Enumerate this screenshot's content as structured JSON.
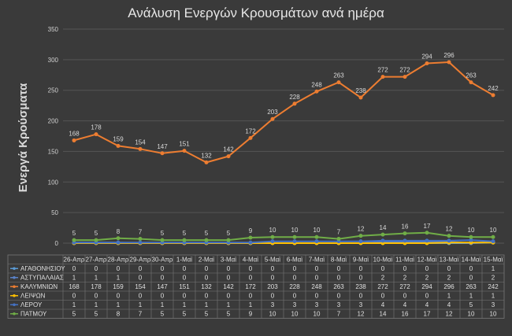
{
  "chart_data": {
    "type": "line",
    "title": "Ανάλυση Ενεργών Κρουσμάτων ανά ημέρα",
    "ylabel": "Ενεργά Κρούσματα",
    "xlabel": "",
    "ylim": [
      0,
      350
    ],
    "yticks": [
      0,
      50,
      100,
      150,
      200,
      250,
      300,
      350
    ],
    "grid": true,
    "legend": "data table",
    "categories": [
      "26-Απρ",
      "27-Απρ",
      "28-Απρ",
      "29-Απρ",
      "30-Απρ",
      "1-Μαϊ",
      "2-Μαϊ",
      "3-Μαϊ",
      "4-Μαϊ",
      "5-Μαϊ",
      "6-Μαϊ",
      "7-Μαϊ",
      "8-Μαϊ",
      "9-Μαϊ",
      "10-Μαϊ",
      "11-Μαϊ",
      "12-Μαϊ",
      "13-Μαϊ",
      "14-Μαϊ",
      "15-Μαϊ"
    ],
    "series": [
      {
        "name": "ΑΓΑΘΟΝΗΣΙΟΥ",
        "color": "#5b9bd5",
        "labeled": false,
        "values": [
          0,
          0,
          0,
          0,
          0,
          0,
          0,
          0,
          0,
          0,
          0,
          0,
          0,
          0,
          0,
          0,
          0,
          0,
          0,
          1
        ]
      },
      {
        "name": "ΑΣΤΥΠΑΛΑΙΑΣ",
        "color": "#5a82c8",
        "labeled": false,
        "values": [
          1,
          1,
          1,
          0,
          0,
          0,
          0,
          0,
          0,
          0,
          0,
          0,
          0,
          0,
          2,
          2,
          2,
          2,
          0,
          2
        ]
      },
      {
        "name": "ΚΑΛΥΜΝΙΩΝ",
        "color": "#ed7d31",
        "labeled": true,
        "values": [
          168,
          178,
          159,
          154,
          147,
          151,
          132,
          142,
          172,
          203,
          228,
          248,
          263,
          238,
          272,
          272,
          294,
          296,
          263,
          242
        ]
      },
      {
        "name": "ΛΕΙΨΩΝ",
        "color": "#ffc000",
        "labeled": false,
        "values": [
          0,
          0,
          0,
          0,
          0,
          0,
          0,
          0,
          0,
          0,
          0,
          0,
          0,
          0,
          0,
          0,
          0,
          1,
          1,
          1
        ]
      },
      {
        "name": "ΛΕΡΟΥ",
        "color": "#4472c4",
        "labeled": false,
        "values": [
          1,
          1,
          1,
          1,
          1,
          1,
          1,
          1,
          1,
          3,
          3,
          3,
          3,
          3,
          4,
          4,
          4,
          4,
          5,
          3
        ]
      },
      {
        "name": "ΠΑΤΜΟΥ",
        "color": "#70ad47",
        "labeled": true,
        "values": [
          5,
          5,
          8,
          7,
          5,
          5,
          5,
          5,
          9,
          10,
          10,
          10,
          7,
          12,
          14,
          16,
          17,
          12,
          10,
          10
        ]
      }
    ]
  }
}
